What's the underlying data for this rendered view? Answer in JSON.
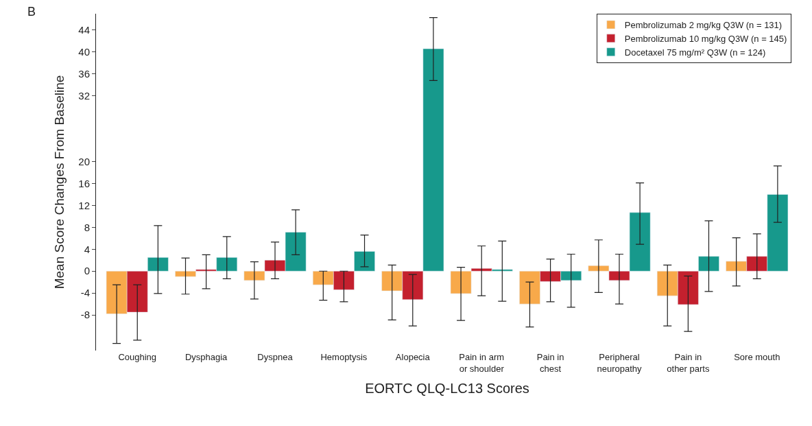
{
  "chart_data": {
    "type": "bar",
    "xlabel": "EORTC QLQ-LC13 Scores",
    "ylabel": "Mean Score Changes From Baseline",
    "annotations": [
      "B"
    ],
    "categories": [
      "Coughing",
      "Dysphagia",
      "Dyspnea",
      "Hemoptysis",
      "Alopecia",
      "Pain in arm\nor shoulder",
      "Pain in\nchest",
      "Peripheral\nneuropathy",
      "Pain in\nother parts",
      "Sore mouth"
    ],
    "series": [
      {
        "name": "Pembrolizumab 2 mg/kg Q3W (n = 131)",
        "color": "#f8a94a",
        "values": [
          -7.8,
          -1.0,
          -1.7,
          -2.5,
          -3.6,
          -4.1,
          -6.0,
          1.0,
          -4.5,
          1.8
        ],
        "errors": [
          [
            -13.2,
            -2.5
          ],
          [
            -4.2,
            2.4
          ],
          [
            -5.1,
            1.7
          ],
          [
            -5.3,
            0
          ],
          [
            -8.9,
            1.1
          ],
          [
            -9.0,
            0.7
          ],
          [
            -10.2,
            -2.0
          ],
          [
            -3.9,
            5.7
          ],
          [
            -10.0,
            1.1
          ],
          [
            -2.7,
            6.1
          ]
        ]
      },
      {
        "name": "Pembrolizumab 10 mg/kg Q3W (n = 145)",
        "color": "#c4202e",
        "values": [
          -7.5,
          0.3,
          2.0,
          -3.4,
          -5.2,
          0.5,
          -1.9,
          -1.7,
          -6.1,
          2.7
        ],
        "errors": [
          [
            -12.6,
            -2.5
          ],
          [
            -3.2,
            3.0
          ],
          [
            -1.4,
            5.3
          ],
          [
            -5.6,
            0
          ],
          [
            -10.0,
            -0.6
          ],
          [
            -4.5,
            4.6
          ],
          [
            -5.6,
            2.2
          ],
          [
            -6.0,
            3.1
          ],
          [
            -11.0,
            -0.9
          ],
          [
            -1.4,
            6.8
          ]
        ]
      },
      {
        "name": "Docetaxel 75 mg/m² Q3W (n = 124)",
        "color": "#17998c",
        "values": [
          2.5,
          2.5,
          7.1,
          3.6,
          40.6,
          0.3,
          -1.7,
          10.7,
          2.7,
          14.0
        ],
        "errors": [
          [
            -4.1,
            8.3
          ],
          [
            -1.4,
            6.3
          ],
          [
            3.0,
            11.2
          ],
          [
            0.8,
            6.6
          ],
          [
            34.8,
            46.3
          ],
          [
            -5.5,
            5.5
          ],
          [
            -6.6,
            3.1
          ],
          [
            4.9,
            16.1
          ],
          [
            -3.7,
            9.2
          ],
          [
            8.9,
            19.2
          ]
        ]
      }
    ],
    "ylim": [
      -14.5,
      47
    ],
    "yticks": [
      -8,
      -4,
      0,
      4,
      8,
      12,
      16,
      20,
      32,
      36,
      40,
      44
    ],
    "legend": "top right"
  }
}
